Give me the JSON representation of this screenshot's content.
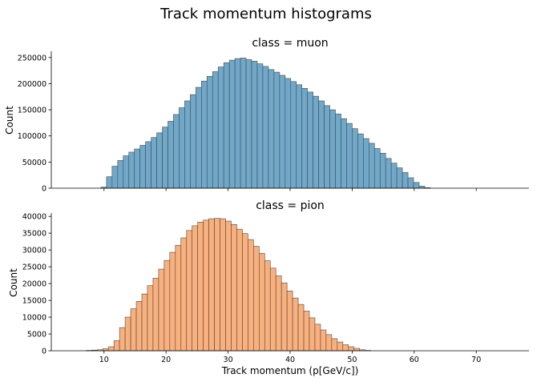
{
  "figure": {
    "title": "Track momentum histograms",
    "xlabel": "Track momentum (p[GeV/c])"
  },
  "chart_data": [
    {
      "type": "bar",
      "title": "class = muon",
      "ylabel": "Count",
      "xlim": [
        1.5,
        78.5
      ],
      "ylim": [
        0,
        262000
      ],
      "xticks": [
        "10",
        "20",
        "30",
        "40",
        "50",
        "60",
        "70"
      ],
      "yticks": [
        "0",
        "50000",
        "100000",
        "150000",
        "200000",
        "250000"
      ],
      "bin_start": 9.5,
      "bin_width": 0.9,
      "color": "#6fa8c9",
      "values": [
        2000,
        22000,
        42000,
        53000,
        62000,
        69000,
        75000,
        82000,
        89000,
        97000,
        106000,
        117000,
        128000,
        141000,
        154000,
        167000,
        179000,
        193000,
        205000,
        214000,
        223000,
        232000,
        240000,
        245000,
        248000,
        249000,
        246000,
        243000,
        238000,
        233000,
        227000,
        222000,
        216000,
        210000,
        204000,
        198000,
        191000,
        184000,
        176000,
        167000,
        158000,
        150000,
        142000,
        133000,
        124000,
        114000,
        104000,
        95000,
        86000,
        76000,
        67000,
        57000,
        48000,
        39000,
        30000,
        20000,
        11000,
        4000,
        1000
      ]
    },
    {
      "type": "bar",
      "title": "class = pion",
      "ylabel": "Count",
      "xlim": [
        1.5,
        78.5
      ],
      "ylim": [
        0,
        41000
      ],
      "xticks": [
        "10",
        "20",
        "30",
        "40",
        "50",
        "60",
        "70"
      ],
      "yticks": [
        "0",
        "5000",
        "10000",
        "15000",
        "20000",
        "25000",
        "30000",
        "35000",
        "40000"
      ],
      "bin_start": 7.1,
      "bin_width": 0.9,
      "color": "#f9b07c",
      "values": [
        100,
        200,
        300,
        600,
        1200,
        3000,
        6900,
        10000,
        12500,
        14700,
        16900,
        19400,
        21600,
        24300,
        26900,
        29300,
        31400,
        33600,
        35800,
        37200,
        38300,
        38900,
        39300,
        39400,
        39300,
        38600,
        37600,
        36200,
        34900,
        33100,
        31100,
        29000,
        26800,
        24600,
        22300,
        20200,
        17800,
        15700,
        13800,
        11800,
        9800,
        7900,
        6200,
        4800,
        3600,
        2600,
        1800,
        1200,
        700,
        300,
        100
      ]
    }
  ]
}
